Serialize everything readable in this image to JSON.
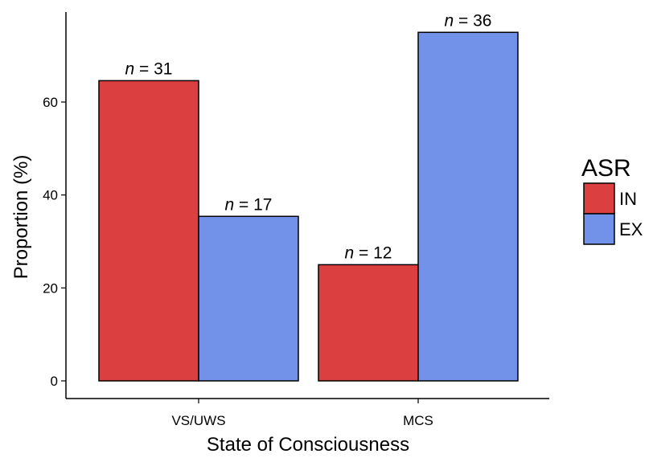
{
  "chart_data": {
    "type": "bar",
    "xlabel": "State of Consciousness",
    "ylabel": "Proportion (%)",
    "categories": [
      "VS/UWS",
      "MCS"
    ],
    "yticks": [
      0,
      20,
      40,
      60
    ],
    "ylim": [
      0,
      75
    ],
    "grid": false,
    "legend": {
      "title": "ASR",
      "placement": "right"
    },
    "series": [
      {
        "name": "IN",
        "color": "#db3f3f",
        "values": [
          64.6,
          25.0
        ],
        "labels": [
          "31",
          "12"
        ]
      },
      {
        "name": "EX",
        "color": "#7192e8",
        "values": [
          35.4,
          75.0
        ],
        "labels": [
          "17",
          "36"
        ]
      }
    ],
    "label_prefix": "n = "
  }
}
